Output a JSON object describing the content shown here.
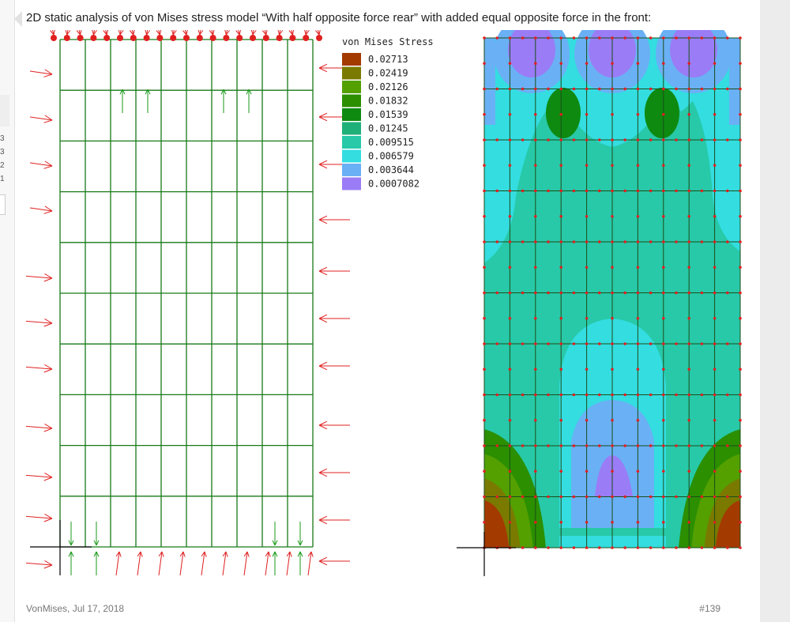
{
  "post": {
    "text": "2D static analysis of von Mises stress model “With half opposite force rear” with added equal opposite force in the front:",
    "author_date": "VonMises, Jul 17, 2018",
    "number": "#139"
  },
  "side_rail": {
    "nums": [
      "3",
      "3",
      "2",
      "1"
    ]
  },
  "figure": {
    "legend_title": "von Mises Stress",
    "legend": [
      {
        "value": "0.02713",
        "color": "#a33a00"
      },
      {
        "value": "0.02419",
        "color": "#7a7a00"
      },
      {
        "value": "0.02126",
        "color": "#53a000"
      },
      {
        "value": "0.01832",
        "color": "#2b8f00"
      },
      {
        "value": "0.01539",
        "color": "#0e8a10"
      },
      {
        "value": "0.01245",
        "color": "#1fb07a"
      },
      {
        "value": "0.009515",
        "color": "#27c9a8"
      },
      {
        "value": "0.006579",
        "color": "#33dde0"
      },
      {
        "value": "0.003644",
        "color": "#6ab0f5"
      },
      {
        "value": "0.0007082",
        "color": "#9a7cf6"
      }
    ],
    "colors": {
      "mesh_line": "#177a17",
      "force_arrow": "#e02020",
      "support_arrow": "#1a9a1a",
      "node_dot": "#e02020",
      "axis": "#000000"
    }
  }
}
